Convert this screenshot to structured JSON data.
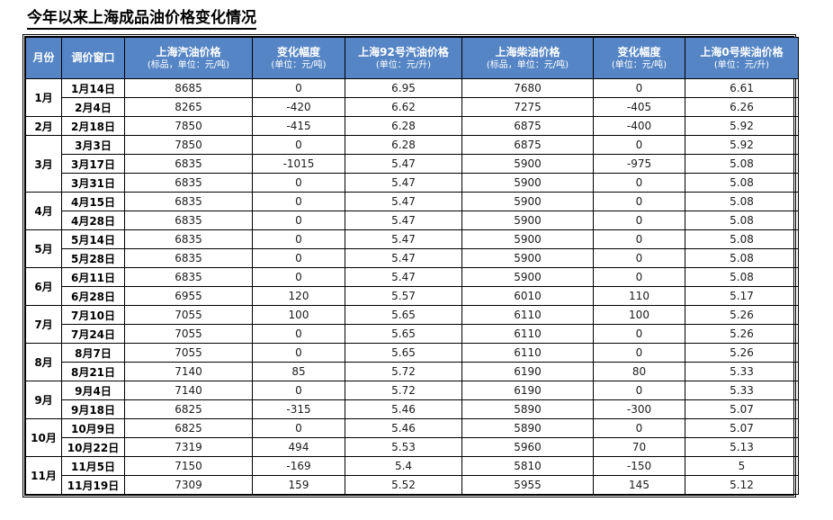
{
  "colors": {
    "header_bg": "#5585C5",
    "header_fg": "#ffffff",
    "border": "#000000"
  },
  "chart_data": {
    "type": "table",
    "title": "今年以来上海成品油价格变化情况",
    "columns": [
      {
        "id": "month",
        "label": "月份",
        "sub": ""
      },
      {
        "id": "window",
        "label": "调价窗口",
        "sub": ""
      },
      {
        "id": "gasoline",
        "label": "上海汽油价格",
        "sub": "(标品，单位：元/吨)"
      },
      {
        "id": "gas-change",
        "label": "变化幅度",
        "sub": "(单位：元/吨)"
      },
      {
        "id": "gasoline-92",
        "label": "上海92号汽油价格",
        "sub": "(单位：元/升)"
      },
      {
        "id": "diesel",
        "label": "上海柴油价格",
        "sub": "(标品，单位：元/吨)"
      },
      {
        "id": "diesel-change",
        "label": "变化幅度",
        "sub": "(单位：元/吨)"
      },
      {
        "id": "diesel-0",
        "label": "上海0号柴油价格",
        "sub": "(单位：元/升)"
      }
    ],
    "groups": [
      {
        "month": "1月",
        "rows": [
          [
            "1月14日",
            "8685",
            "0",
            "6.95",
            "7680",
            "0",
            "6.61"
          ],
          [
            "2月4日",
            "8265",
            "-420",
            "6.62",
            "7275",
            "-405",
            "6.26"
          ]
        ]
      },
      {
        "month": "2月",
        "rows": [
          [
            "2月18日",
            "7850",
            "-415",
            "6.28",
            "6875",
            "-400",
            "5.92"
          ]
        ]
      },
      {
        "month": "3月",
        "rows": [
          [
            "3月3日",
            "7850",
            "0",
            "6.28",
            "6875",
            "0",
            "5.92"
          ],
          [
            "3月17日",
            "6835",
            "-1015",
            "5.47",
            "5900",
            "-975",
            "5.08"
          ],
          [
            "3月31日",
            "6835",
            "0",
            "5.47",
            "5900",
            "0",
            "5.08"
          ]
        ]
      },
      {
        "month": "4月",
        "rows": [
          [
            "4月15日",
            "6835",
            "0",
            "5.47",
            "5900",
            "0",
            "5.08"
          ],
          [
            "4月28日",
            "6835",
            "0",
            "5.47",
            "5900",
            "0",
            "5.08"
          ]
        ]
      },
      {
        "month": "5月",
        "rows": [
          [
            "5月14日",
            "6835",
            "0",
            "5.47",
            "5900",
            "0",
            "5.08"
          ],
          [
            "5月28日",
            "6835",
            "0",
            "5.47",
            "5900",
            "0",
            "5.08"
          ]
        ]
      },
      {
        "month": "6月",
        "rows": [
          [
            "6月11日",
            "6835",
            "0",
            "5.47",
            "5900",
            "0",
            "5.08"
          ],
          [
            "6月28日",
            "6955",
            "120",
            "5.57",
            "6010",
            "110",
            "5.17"
          ]
        ]
      },
      {
        "month": "7月",
        "rows": [
          [
            "7月10日",
            "7055",
            "100",
            "5.65",
            "6110",
            "100",
            "5.26"
          ],
          [
            "7月24日",
            "7055",
            "0",
            "5.65",
            "6110",
            "0",
            "5.26"
          ]
        ]
      },
      {
        "month": "8月",
        "rows": [
          [
            "8月7日",
            "7055",
            "0",
            "5.65",
            "6110",
            "0",
            "5.26"
          ],
          [
            "8月21日",
            "7140",
            "85",
            "5.72",
            "6190",
            "80",
            "5.33"
          ]
        ]
      },
      {
        "month": "9月",
        "rows": [
          [
            "9月4日",
            "7140",
            "0",
            "5.72",
            "6190",
            "0",
            "5.33"
          ],
          [
            "9月18日",
            "6825",
            "-315",
            "5.46",
            "5890",
            "-300",
            "5.07"
          ]
        ]
      },
      {
        "month": "10月",
        "rows": [
          [
            "10月9日",
            "6825",
            "0",
            "5.46",
            "5890",
            "0",
            "5.07"
          ],
          [
            "10月22日",
            "7319",
            "494",
            "5.53",
            "5960",
            "70",
            "5.13"
          ]
        ]
      },
      {
        "month": "11月",
        "rows": [
          [
            "11月5日",
            "7150",
            "-169",
            "5.4",
            "5810",
            "-150",
            "5"
          ],
          [
            "11月19日",
            "7309",
            "159",
            "5.52",
            "5955",
            "145",
            "5.12"
          ]
        ]
      }
    ]
  }
}
